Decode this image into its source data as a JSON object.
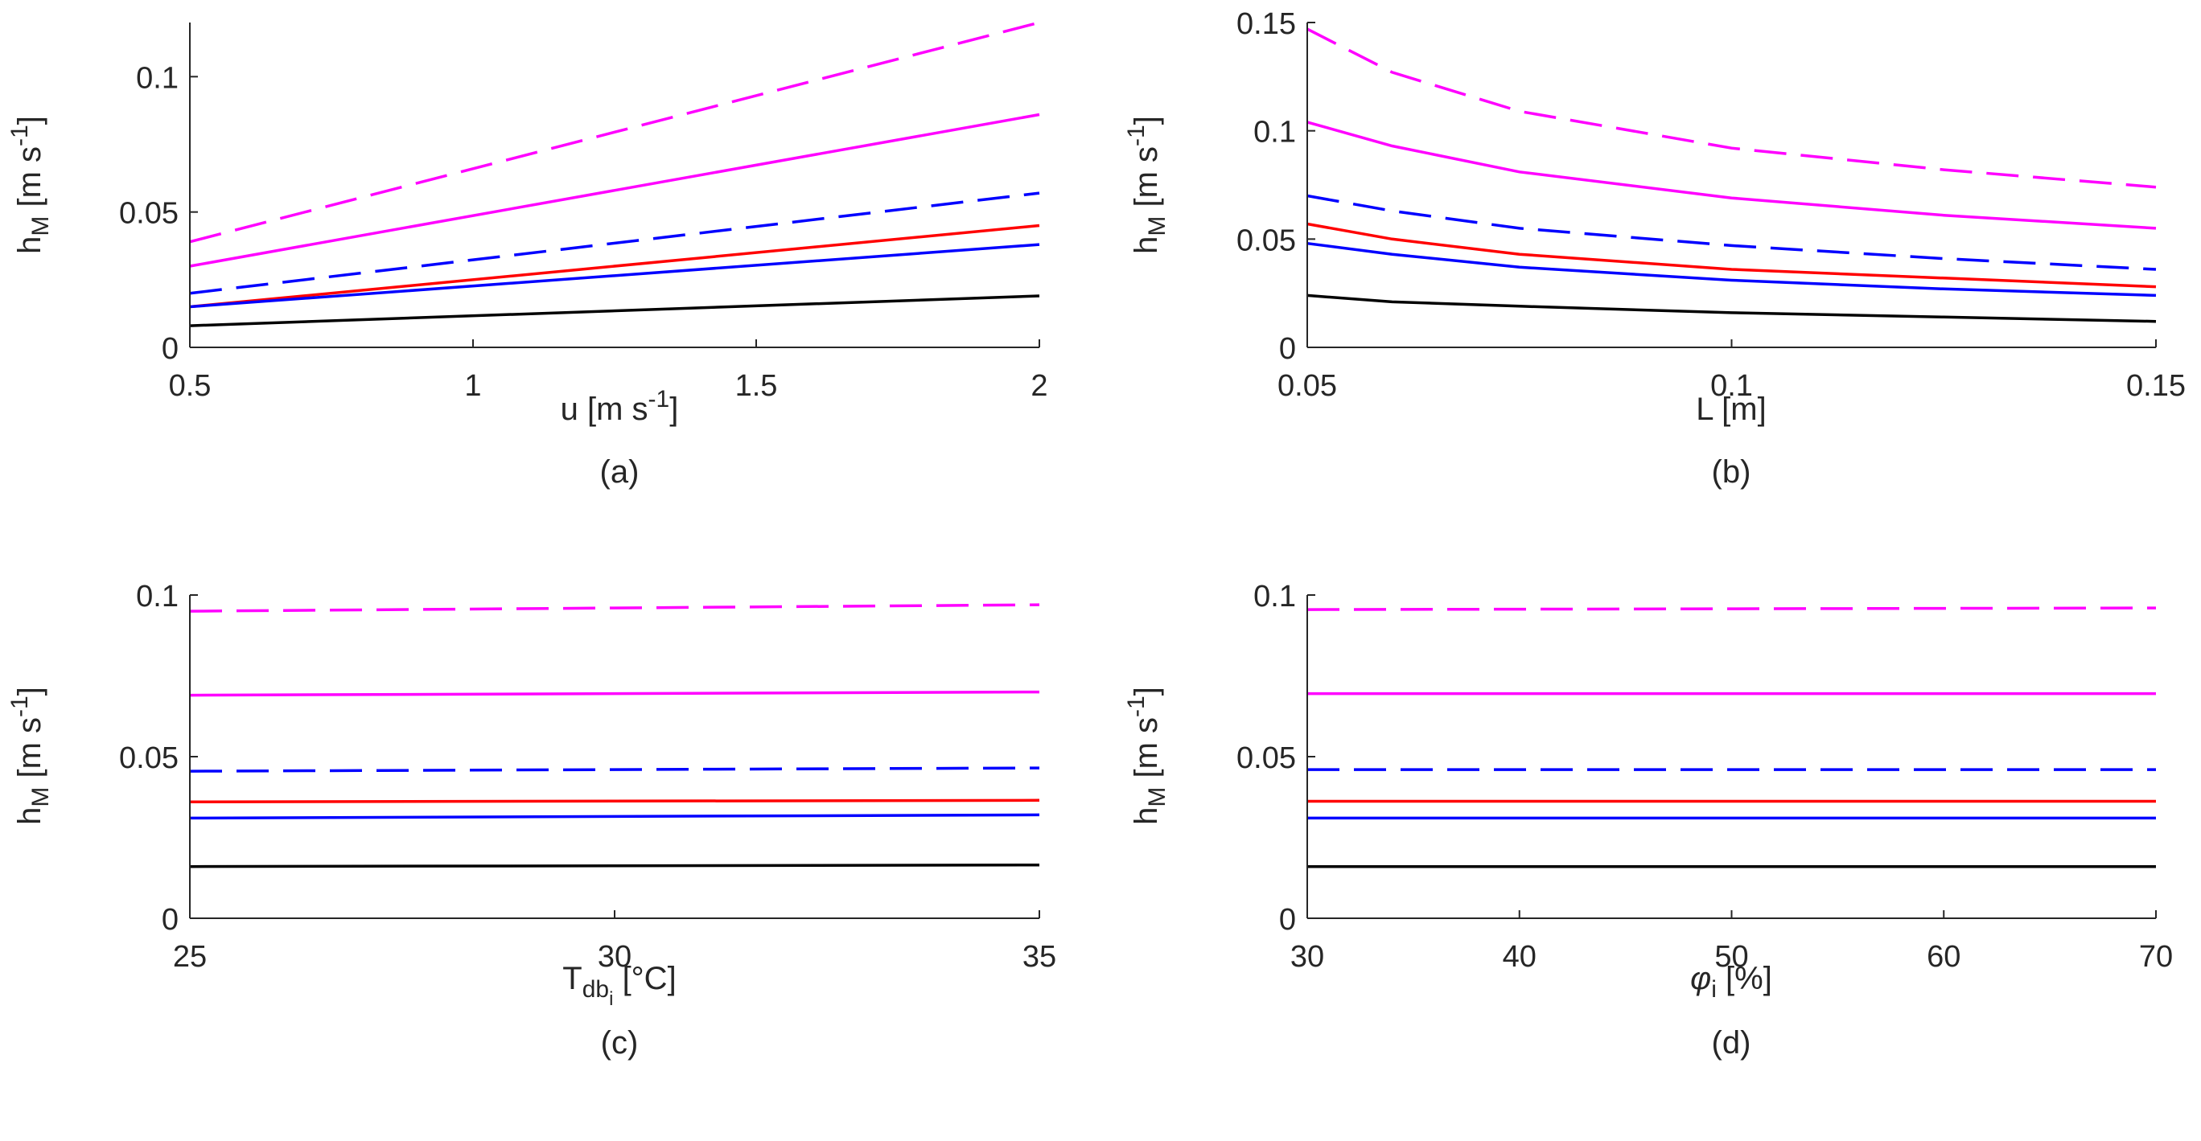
{
  "colors": {
    "magenta": "#ff00ff",
    "blue": "#0000ff",
    "red": "#ff0000",
    "black": "#000000",
    "axis": "#262626"
  },
  "chart_data": [
    {
      "type": "line",
      "caption": "(a)",
      "xlabel": {
        "main": "u [m s",
        "sup": "-1",
        "tail": "]"
      },
      "ylabel": {
        "h": "h",
        "sub": "M",
        "rest": " [m s",
        "sup": "-1",
        "tail": "]"
      },
      "xlim": [
        0.5,
        2
      ],
      "ylim": [
        0,
        0.12
      ],
      "xticks": [
        {
          "v": 0.5,
          "l": "0.5"
        },
        {
          "v": 1,
          "l": "1"
        },
        {
          "v": 1.5,
          "l": "1.5"
        },
        {
          "v": 2,
          "l": "2"
        }
      ],
      "yticks": [
        {
          "v": 0,
          "l": "0"
        },
        {
          "v": 0.05,
          "l": "0.05"
        },
        {
          "v": 0.1,
          "l": "0.1"
        }
      ],
      "grid": false,
      "series": [
        {
          "color": "magenta",
          "dash": true,
          "x": [
            0.5,
            2
          ],
          "y": [
            0.039,
            0.12
          ]
        },
        {
          "color": "magenta",
          "dash": false,
          "x": [
            0.5,
            2
          ],
          "y": [
            0.03,
            0.086
          ]
        },
        {
          "color": "blue",
          "dash": true,
          "x": [
            0.5,
            2
          ],
          "y": [
            0.02,
            0.057
          ]
        },
        {
          "color": "red",
          "dash": false,
          "x": [
            0.5,
            2
          ],
          "y": [
            0.015,
            0.045
          ]
        },
        {
          "color": "blue",
          "dash": false,
          "x": [
            0.5,
            2
          ],
          "y": [
            0.015,
            0.038
          ]
        },
        {
          "color": "black",
          "dash": false,
          "x": [
            0.5,
            2
          ],
          "y": [
            0.008,
            0.019
          ]
        }
      ]
    },
    {
      "type": "line",
      "caption": "(b)",
      "xlabel": {
        "main": "L [m]",
        "sup": "",
        "tail": ""
      },
      "ylabel": {
        "h": "h",
        "sub": "M",
        "rest": " [m s",
        "sup": "-1",
        "tail": "]"
      },
      "xlim": [
        0.05,
        0.15
      ],
      "ylim": [
        0,
        0.15
      ],
      "xticks": [
        {
          "v": 0.05,
          "l": "0.05"
        },
        {
          "v": 0.1,
          "l": "0.1"
        },
        {
          "v": 0.15,
          "l": "0.15"
        }
      ],
      "yticks": [
        {
          "v": 0,
          "l": "0"
        },
        {
          "v": 0.05,
          "l": "0.05"
        },
        {
          "v": 0.1,
          "l": "0.1"
        },
        {
          "v": 0.15,
          "l": "0.15"
        }
      ],
      "grid": false,
      "series": [
        {
          "color": "magenta",
          "dash": true,
          "x": [
            0.05,
            0.06,
            0.075,
            0.1,
            0.125,
            0.15
          ],
          "y": [
            0.147,
            0.127,
            0.109,
            0.092,
            0.082,
            0.074
          ]
        },
        {
          "color": "magenta",
          "dash": false,
          "x": [
            0.05,
            0.06,
            0.075,
            0.1,
            0.125,
            0.15
          ],
          "y": [
            0.104,
            0.093,
            0.081,
            0.069,
            0.061,
            0.055
          ]
        },
        {
          "color": "blue",
          "dash": true,
          "x": [
            0.05,
            0.06,
            0.075,
            0.1,
            0.125,
            0.15
          ],
          "y": [
            0.07,
            0.063,
            0.055,
            0.047,
            0.041,
            0.036
          ]
        },
        {
          "color": "red",
          "dash": false,
          "x": [
            0.05,
            0.06,
            0.075,
            0.1,
            0.125,
            0.15
          ],
          "y": [
            0.057,
            0.05,
            0.043,
            0.036,
            0.032,
            0.028
          ]
        },
        {
          "color": "blue",
          "dash": false,
          "x": [
            0.05,
            0.06,
            0.075,
            0.1,
            0.125,
            0.15
          ],
          "y": [
            0.048,
            0.043,
            0.037,
            0.031,
            0.027,
            0.024
          ]
        },
        {
          "color": "black",
          "dash": false,
          "x": [
            0.05,
            0.06,
            0.075,
            0.1,
            0.125,
            0.15
          ],
          "y": [
            0.024,
            0.021,
            0.019,
            0.016,
            0.014,
            0.012
          ]
        }
      ]
    },
    {
      "type": "line",
      "caption": "(c)",
      "xlabel": {
        "main": "T",
        "sub": "db",
        "subsub": "i",
        "tail": " [°C]"
      },
      "ylabel": {
        "h": "h",
        "sub": "M",
        "rest": " [m s",
        "sup": "-1",
        "tail": "]"
      },
      "xlim": [
        25,
        35
      ],
      "ylim": [
        0,
        0.1
      ],
      "xticks": [
        {
          "v": 25,
          "l": "25"
        },
        {
          "v": 30,
          "l": "30"
        },
        {
          "v": 35,
          "l": "35"
        }
      ],
      "yticks": [
        {
          "v": 0,
          "l": "0"
        },
        {
          "v": 0.05,
          "l": "0.05"
        },
        {
          "v": 0.1,
          "l": "0.1"
        }
      ],
      "grid": false,
      "series": [
        {
          "color": "magenta",
          "dash": true,
          "x": [
            25,
            35
          ],
          "y": [
            0.095,
            0.097
          ]
        },
        {
          "color": "magenta",
          "dash": false,
          "x": [
            25,
            35
          ],
          "y": [
            0.069,
            0.07
          ]
        },
        {
          "color": "blue",
          "dash": true,
          "x": [
            25,
            35
          ],
          "y": [
            0.0455,
            0.0465
          ]
        },
        {
          "color": "red",
          "dash": false,
          "x": [
            25,
            35
          ],
          "y": [
            0.036,
            0.0365
          ]
        },
        {
          "color": "blue",
          "dash": false,
          "x": [
            25,
            35
          ],
          "y": [
            0.031,
            0.032
          ]
        },
        {
          "color": "black",
          "dash": false,
          "x": [
            25,
            35
          ],
          "y": [
            0.016,
            0.0165
          ]
        }
      ]
    },
    {
      "type": "line",
      "caption": "(d)",
      "xlabel": {
        "phi": "φ",
        "sub": "i",
        "tail": " [%]"
      },
      "ylabel": {
        "h": "h",
        "sub": "M",
        "rest": " [m s",
        "sup": "-1",
        "tail": "]"
      },
      "xlim": [
        30,
        70
      ],
      "ylim": [
        0,
        0.1
      ],
      "xticks": [
        {
          "v": 30,
          "l": "30"
        },
        {
          "v": 40,
          "l": "40"
        },
        {
          "v": 50,
          "l": "50"
        },
        {
          "v": 60,
          "l": "60"
        },
        {
          "v": 70,
          "l": "70"
        }
      ],
      "yticks": [
        {
          "v": 0,
          "l": "0"
        },
        {
          "v": 0.05,
          "l": "0.05"
        },
        {
          "v": 0.1,
          "l": "0.1"
        }
      ],
      "grid": false,
      "series": [
        {
          "color": "magenta",
          "dash": true,
          "x": [
            30,
            70
          ],
          "y": [
            0.0955,
            0.096
          ]
        },
        {
          "color": "magenta",
          "dash": false,
          "x": [
            30,
            70
          ],
          "y": [
            0.0695,
            0.0695
          ]
        },
        {
          "color": "blue",
          "dash": true,
          "x": [
            30,
            70
          ],
          "y": [
            0.046,
            0.046
          ]
        },
        {
          "color": "red",
          "dash": false,
          "x": [
            30,
            70
          ],
          "y": [
            0.0362,
            0.0362
          ]
        },
        {
          "color": "blue",
          "dash": false,
          "x": [
            30,
            70
          ],
          "y": [
            0.031,
            0.031
          ]
        },
        {
          "color": "black",
          "dash": false,
          "x": [
            30,
            70
          ],
          "y": [
            0.016,
            0.016
          ]
        }
      ]
    }
  ]
}
